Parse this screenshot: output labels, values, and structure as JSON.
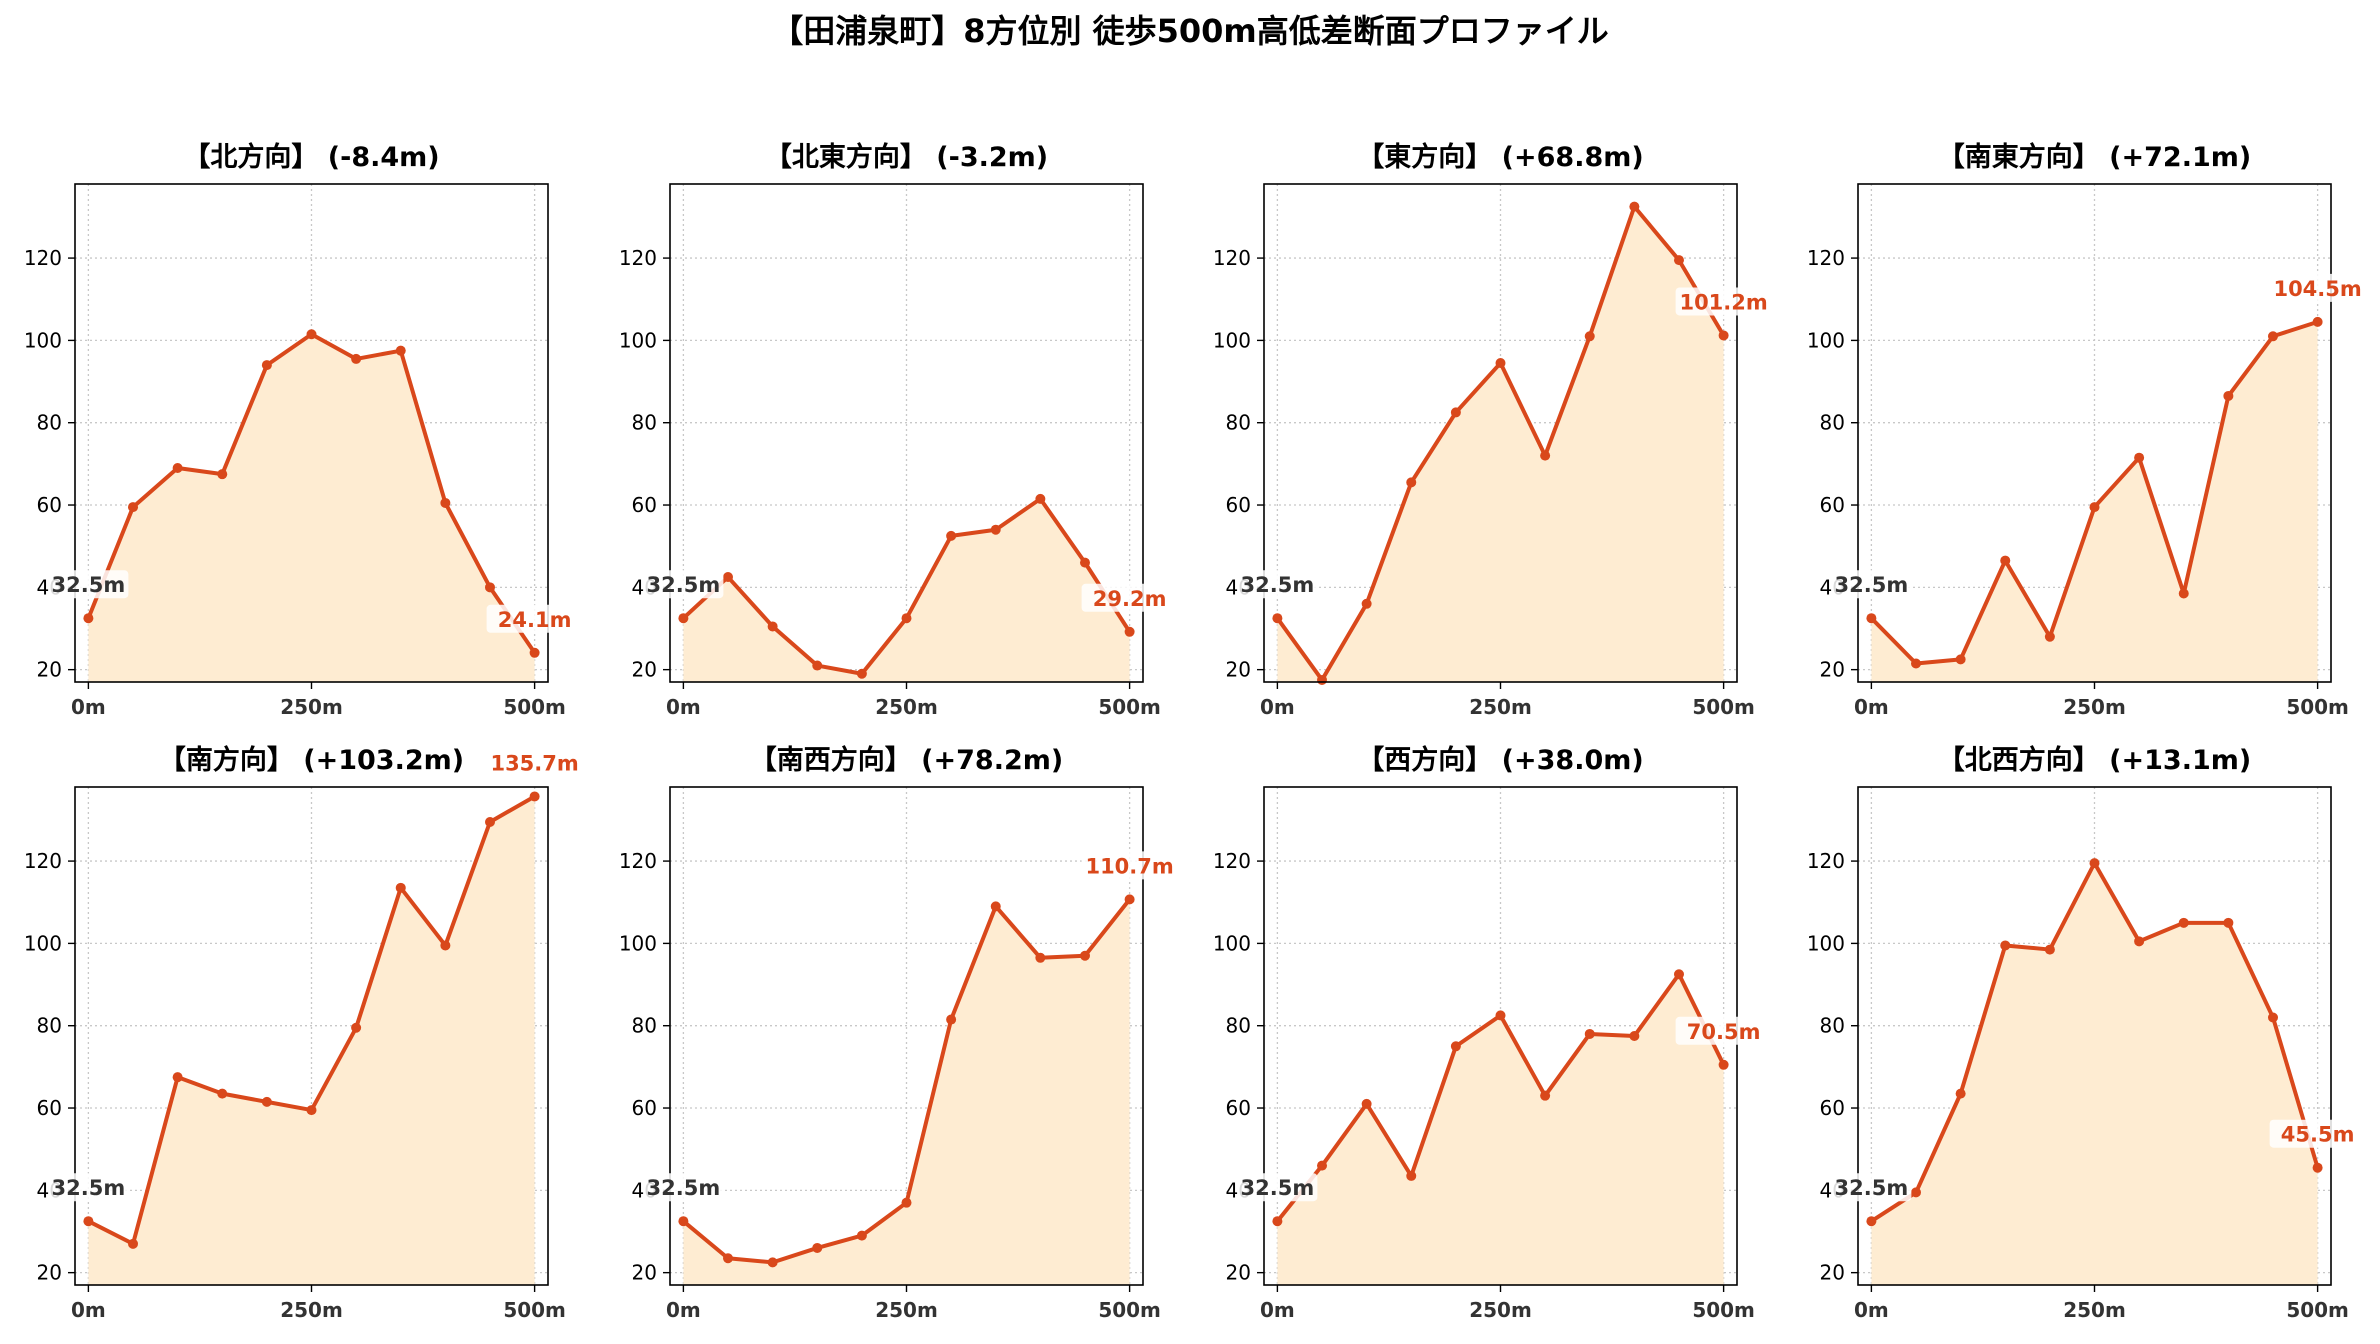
{
  "figure": {
    "title": "【田浦泉町】8方位別 徒歩500m高低差断面プロファイル"
  },
  "colors": {
    "line": "#d9481b",
    "fill": "#feecd2",
    "grid": "#c8c8c8",
    "axis": "#000000",
    "start_label": "#333333",
    "end_label": "#d9481b"
  },
  "chart_data": [
    {
      "type": "area",
      "title": "【北方向】 (-8.4m)",
      "x": [
        0,
        50,
        100,
        150,
        200,
        250,
        300,
        350,
        400,
        450,
        500
      ],
      "xticks": [
        "0m",
        "250m",
        "500m"
      ],
      "xtick_values": [
        0,
        250,
        500
      ],
      "yticks": [
        20,
        40,
        60,
        80,
        100,
        120
      ],
      "xlim": [
        -15,
        515
      ],
      "ylim": [
        17,
        138
      ],
      "grid": true,
      "values": [
        32.5,
        59.5,
        69.0,
        67.5,
        94.0,
        101.5,
        95.5,
        97.5,
        60.5,
        40.0,
        24.1
      ],
      "start_label": "32.5m",
      "end_label": "24.1m"
    },
    {
      "type": "area",
      "title": "【北東方向】 (-3.2m)",
      "x": [
        0,
        50,
        100,
        150,
        200,
        250,
        300,
        350,
        400,
        450,
        500
      ],
      "xticks": [
        "0m",
        "250m",
        "500m"
      ],
      "xtick_values": [
        0,
        250,
        500
      ],
      "yticks": [
        20,
        40,
        60,
        80,
        100,
        120
      ],
      "xlim": [
        -15,
        515
      ],
      "ylim": [
        17,
        138
      ],
      "grid": true,
      "values": [
        32.5,
        42.5,
        30.5,
        21.0,
        19.0,
        32.5,
        52.5,
        54.0,
        61.5,
        46.0,
        29.2
      ],
      "start_label": "32.5m",
      "end_label": "29.2m"
    },
    {
      "type": "area",
      "title": "【東方向】 (+68.8m)",
      "x": [
        0,
        50,
        100,
        150,
        200,
        250,
        300,
        350,
        400,
        450,
        500
      ],
      "xticks": [
        "0m",
        "250m",
        "500m"
      ],
      "xtick_values": [
        0,
        250,
        500
      ],
      "yticks": [
        20,
        40,
        60,
        80,
        100,
        120
      ],
      "xlim": [
        -15,
        515
      ],
      "ylim": [
        17,
        138
      ],
      "grid": true,
      "values": [
        32.5,
        17.5,
        36.0,
        65.5,
        82.5,
        94.5,
        72.0,
        101.0,
        132.5,
        119.5,
        101.2
      ],
      "start_label": "32.5m",
      "end_label": "101.2m"
    },
    {
      "type": "area",
      "title": "【南東方向】 (+72.1m)",
      "x": [
        0,
        50,
        100,
        150,
        200,
        250,
        300,
        350,
        400,
        450,
        500
      ],
      "xticks": [
        "0m",
        "250m",
        "500m"
      ],
      "xtick_values": [
        0,
        250,
        500
      ],
      "yticks": [
        20,
        40,
        60,
        80,
        100,
        120
      ],
      "xlim": [
        -15,
        515
      ],
      "ylim": [
        17,
        138
      ],
      "grid": true,
      "values": [
        32.5,
        21.5,
        22.5,
        46.5,
        28.0,
        59.5,
        71.5,
        38.5,
        86.5,
        101.0,
        104.5
      ],
      "start_label": "32.5m",
      "end_label": "104.5m"
    },
    {
      "type": "area",
      "title": "【南方向】 (+103.2m)",
      "x": [
        0,
        50,
        100,
        150,
        200,
        250,
        300,
        350,
        400,
        450,
        500
      ],
      "xticks": [
        "0m",
        "250m",
        "500m"
      ],
      "xtick_values": [
        0,
        250,
        500
      ],
      "yticks": [
        20,
        40,
        60,
        80,
        100,
        120
      ],
      "xlim": [
        -15,
        515
      ],
      "ylim": [
        17,
        138
      ],
      "grid": true,
      "values": [
        32.5,
        27.0,
        67.5,
        63.5,
        61.5,
        59.5,
        79.5,
        113.5,
        99.5,
        129.5,
        135.7
      ],
      "start_label": "32.5m",
      "end_label": "135.7m"
    },
    {
      "type": "area",
      "title": "【南西方向】 (+78.2m)",
      "x": [
        0,
        50,
        100,
        150,
        200,
        250,
        300,
        350,
        400,
        450,
        500
      ],
      "xticks": [
        "0m",
        "250m",
        "500m"
      ],
      "xtick_values": [
        0,
        250,
        500
      ],
      "yticks": [
        20,
        40,
        60,
        80,
        100,
        120
      ],
      "xlim": [
        -15,
        515
      ],
      "ylim": [
        17,
        138
      ],
      "grid": true,
      "values": [
        32.5,
        23.5,
        22.5,
        26.0,
        29.0,
        37.0,
        81.5,
        109.0,
        96.5,
        97.0,
        110.7
      ],
      "start_label": "32.5m",
      "end_label": "110.7m"
    },
    {
      "type": "area",
      "title": "【西方向】 (+38.0m)",
      "x": [
        0,
        50,
        100,
        150,
        200,
        250,
        300,
        350,
        400,
        450,
        500
      ],
      "xticks": [
        "0m",
        "250m",
        "500m"
      ],
      "xtick_values": [
        0,
        250,
        500
      ],
      "yticks": [
        20,
        40,
        60,
        80,
        100,
        120
      ],
      "xlim": [
        -15,
        515
      ],
      "ylim": [
        17,
        138
      ],
      "grid": true,
      "values": [
        32.5,
        46.0,
        61.0,
        43.5,
        75.0,
        82.5,
        63.0,
        78.0,
        77.5,
        92.5,
        70.5
      ],
      "start_label": "32.5m",
      "end_label": "70.5m"
    },
    {
      "type": "area",
      "title": "【北西方向】 (+13.1m)",
      "x": [
        0,
        50,
        100,
        150,
        200,
        250,
        300,
        350,
        400,
        450,
        500
      ],
      "xticks": [
        "0m",
        "250m",
        "500m"
      ],
      "xtick_values": [
        0,
        250,
        500
      ],
      "yticks": [
        20,
        40,
        60,
        80,
        100,
        120
      ],
      "xlim": [
        -15,
        515
      ],
      "ylim": [
        17,
        138
      ],
      "grid": true,
      "values": [
        32.5,
        39.5,
        63.5,
        99.5,
        98.5,
        119.5,
        100.5,
        105.0,
        105.0,
        82.0,
        45.5
      ],
      "start_label": "32.5m",
      "end_label": "45.5m"
    }
  ]
}
